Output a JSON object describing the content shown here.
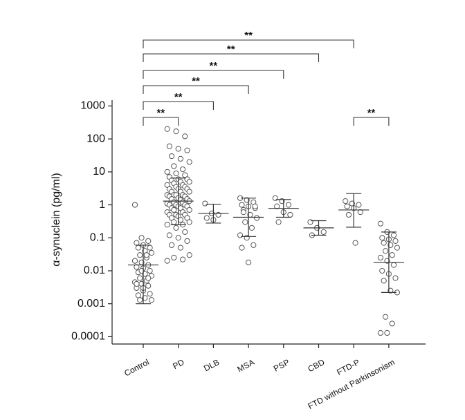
{
  "chart_data": {
    "type": "scatter",
    "y_label": "α-synuclein (pg/ml)",
    "log_y": true,
    "ylim": [
      6e-05,
      1500
    ],
    "yticks": [
      1000,
      100,
      10,
      1,
      0.1,
      0.01,
      0.001,
      0.0001
    ],
    "categories": [
      "Control",
      "PD",
      "DLB",
      "MSA",
      "PSP",
      "CBD",
      "FTD-P",
      "FTD without Parkinsonism"
    ],
    "groups": [
      {
        "values": [
          1,
          0.1,
          0.08,
          0.07,
          0.06,
          0.05,
          0.05,
          0.04,
          0.035,
          0.03,
          0.025,
          0.02,
          0.018,
          0.015,
          0.013,
          0.012,
          0.01,
          0.009,
          0.008,
          0.007,
          0.006,
          0.005,
          0.0045,
          0.004,
          0.0035,
          0.003,
          0.0025,
          0.002,
          0.0018,
          0.0015,
          0.0013,
          0.0013,
          0.03,
          0.02,
          0.01,
          0.006,
          0.004,
          0.003
        ],
        "center": 0.015,
        "low": 0.001,
        "high": 0.06
      },
      {
        "values": [
          200,
          170,
          120,
          60,
          50,
          45,
          30,
          25,
          20,
          15,
          12,
          10,
          9,
          8,
          7,
          6,
          6,
          5.5,
          5,
          5,
          4.5,
          4,
          4,
          3.5,
          3.5,
          3,
          3,
          3,
          2.5,
          2.5,
          2.5,
          2,
          2,
          2,
          2,
          1.8,
          1.8,
          1.6,
          1.5,
          1.5,
          1.4,
          1.3,
          1.2,
          1.2,
          1.1,
          1,
          1,
          1,
          0.9,
          0.9,
          0.8,
          0.8,
          0.7,
          0.7,
          0.6,
          0.6,
          0.5,
          0.5,
          0.5,
          0.45,
          0.4,
          0.4,
          0.35,
          0.3,
          0.3,
          0.25,
          0.25,
          0.2,
          0.15,
          0.12,
          0.1,
          0.08,
          0.06,
          0.05,
          0.03,
          0.025,
          0.022,
          0.02
        ],
        "center": 1.3,
        "low": 0.25,
        "high": 6.5
      },
      {
        "values": [
          1.1,
          0.55,
          0.5,
          0.4,
          0.35
        ],
        "center": 0.55,
        "low": 0.28,
        "high": 1.05
      },
      {
        "values": [
          1.6,
          1.4,
          1.2,
          1,
          0.9,
          0.8,
          0.7,
          0.5,
          0.4,
          0.3,
          0.2,
          0.12,
          0.1,
          0.06,
          0.05,
          0.018,
          0.9,
          0.6
        ],
        "center": 0.42,
        "low": 0.11,
        "high": 1.6
      },
      {
        "values": [
          1.6,
          1.3,
          1,
          0.9,
          0.6,
          0.5,
          0.3
        ],
        "center": 0.78,
        "low": 0.42,
        "high": 1.45
      },
      {
        "values": [
          0.3,
          0.2,
          0.15,
          0.12
        ],
        "center": 0.2,
        "low": 0.12,
        "high": 0.33
      },
      {
        "values": [
          1.3,
          1.1,
          1,
          0.9,
          0.8,
          0.6,
          0.5,
          0.07
        ],
        "center": 0.7,
        "low": 0.21,
        "high": 2.2
      },
      {
        "values": [
          0.27,
          0.15,
          0.12,
          0.1,
          0.09,
          0.08,
          0.07,
          0.06,
          0.05,
          0.04,
          0.03,
          0.025,
          0.02,
          0.015,
          0.01,
          0.008,
          0.006,
          0.005,
          0.0025,
          0.0022,
          0.0004,
          0.00025,
          0.00013,
          0.00013
        ],
        "center": 0.018,
        "low": 0.0022,
        "high": 0.15
      }
    ],
    "brackets": [
      {
        "between": [
          "Control",
          "PD"
        ],
        "label": "**"
      },
      {
        "between": [
          "Control",
          "DLB"
        ],
        "label": "**"
      },
      {
        "between": [
          "Control",
          "MSA"
        ],
        "label": "**"
      },
      {
        "between": [
          "Control",
          "PSP"
        ],
        "label": "**"
      },
      {
        "between": [
          "Control",
          "CBD"
        ],
        "label": "**"
      },
      {
        "between": [
          "Control",
          "FTD-P"
        ],
        "label": "**"
      },
      {
        "between": [
          "FTD-P",
          "FTD without Parkinsonism"
        ],
        "label": "**"
      }
    ]
  }
}
